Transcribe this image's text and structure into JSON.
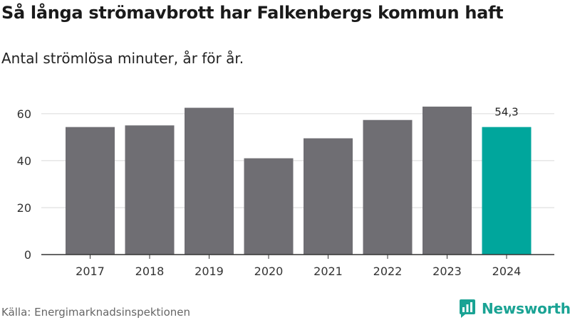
{
  "header": {
    "title": "Så långa strömavbrott har Falkenbergs kommun haft",
    "subtitle": "Antal strömlösa minuter, år för år."
  },
  "footer": {
    "source": "Källa: Energimarknadsinspektionen",
    "brand": "Newsworthy"
  },
  "colors": {
    "bar": "#6f6e73",
    "highlight": "#00a69c",
    "grid": "#d9d9d9",
    "axis": "#333333"
  },
  "chart_data": {
    "type": "bar",
    "categories": [
      "2017",
      "2018",
      "2019",
      "2020",
      "2021",
      "2022",
      "2023",
      "2024"
    ],
    "values": [
      54.3,
      55,
      62.5,
      41,
      49.5,
      57.3,
      63,
      54.3
    ],
    "highlight_index": 7,
    "data_labels": [
      {
        "index": 7,
        "text": "54,3"
      }
    ],
    "yticks": [
      0,
      20,
      40,
      60
    ],
    "ylim": [
      0,
      66
    ],
    "xlabel": "",
    "ylabel": "",
    "grid": true
  }
}
